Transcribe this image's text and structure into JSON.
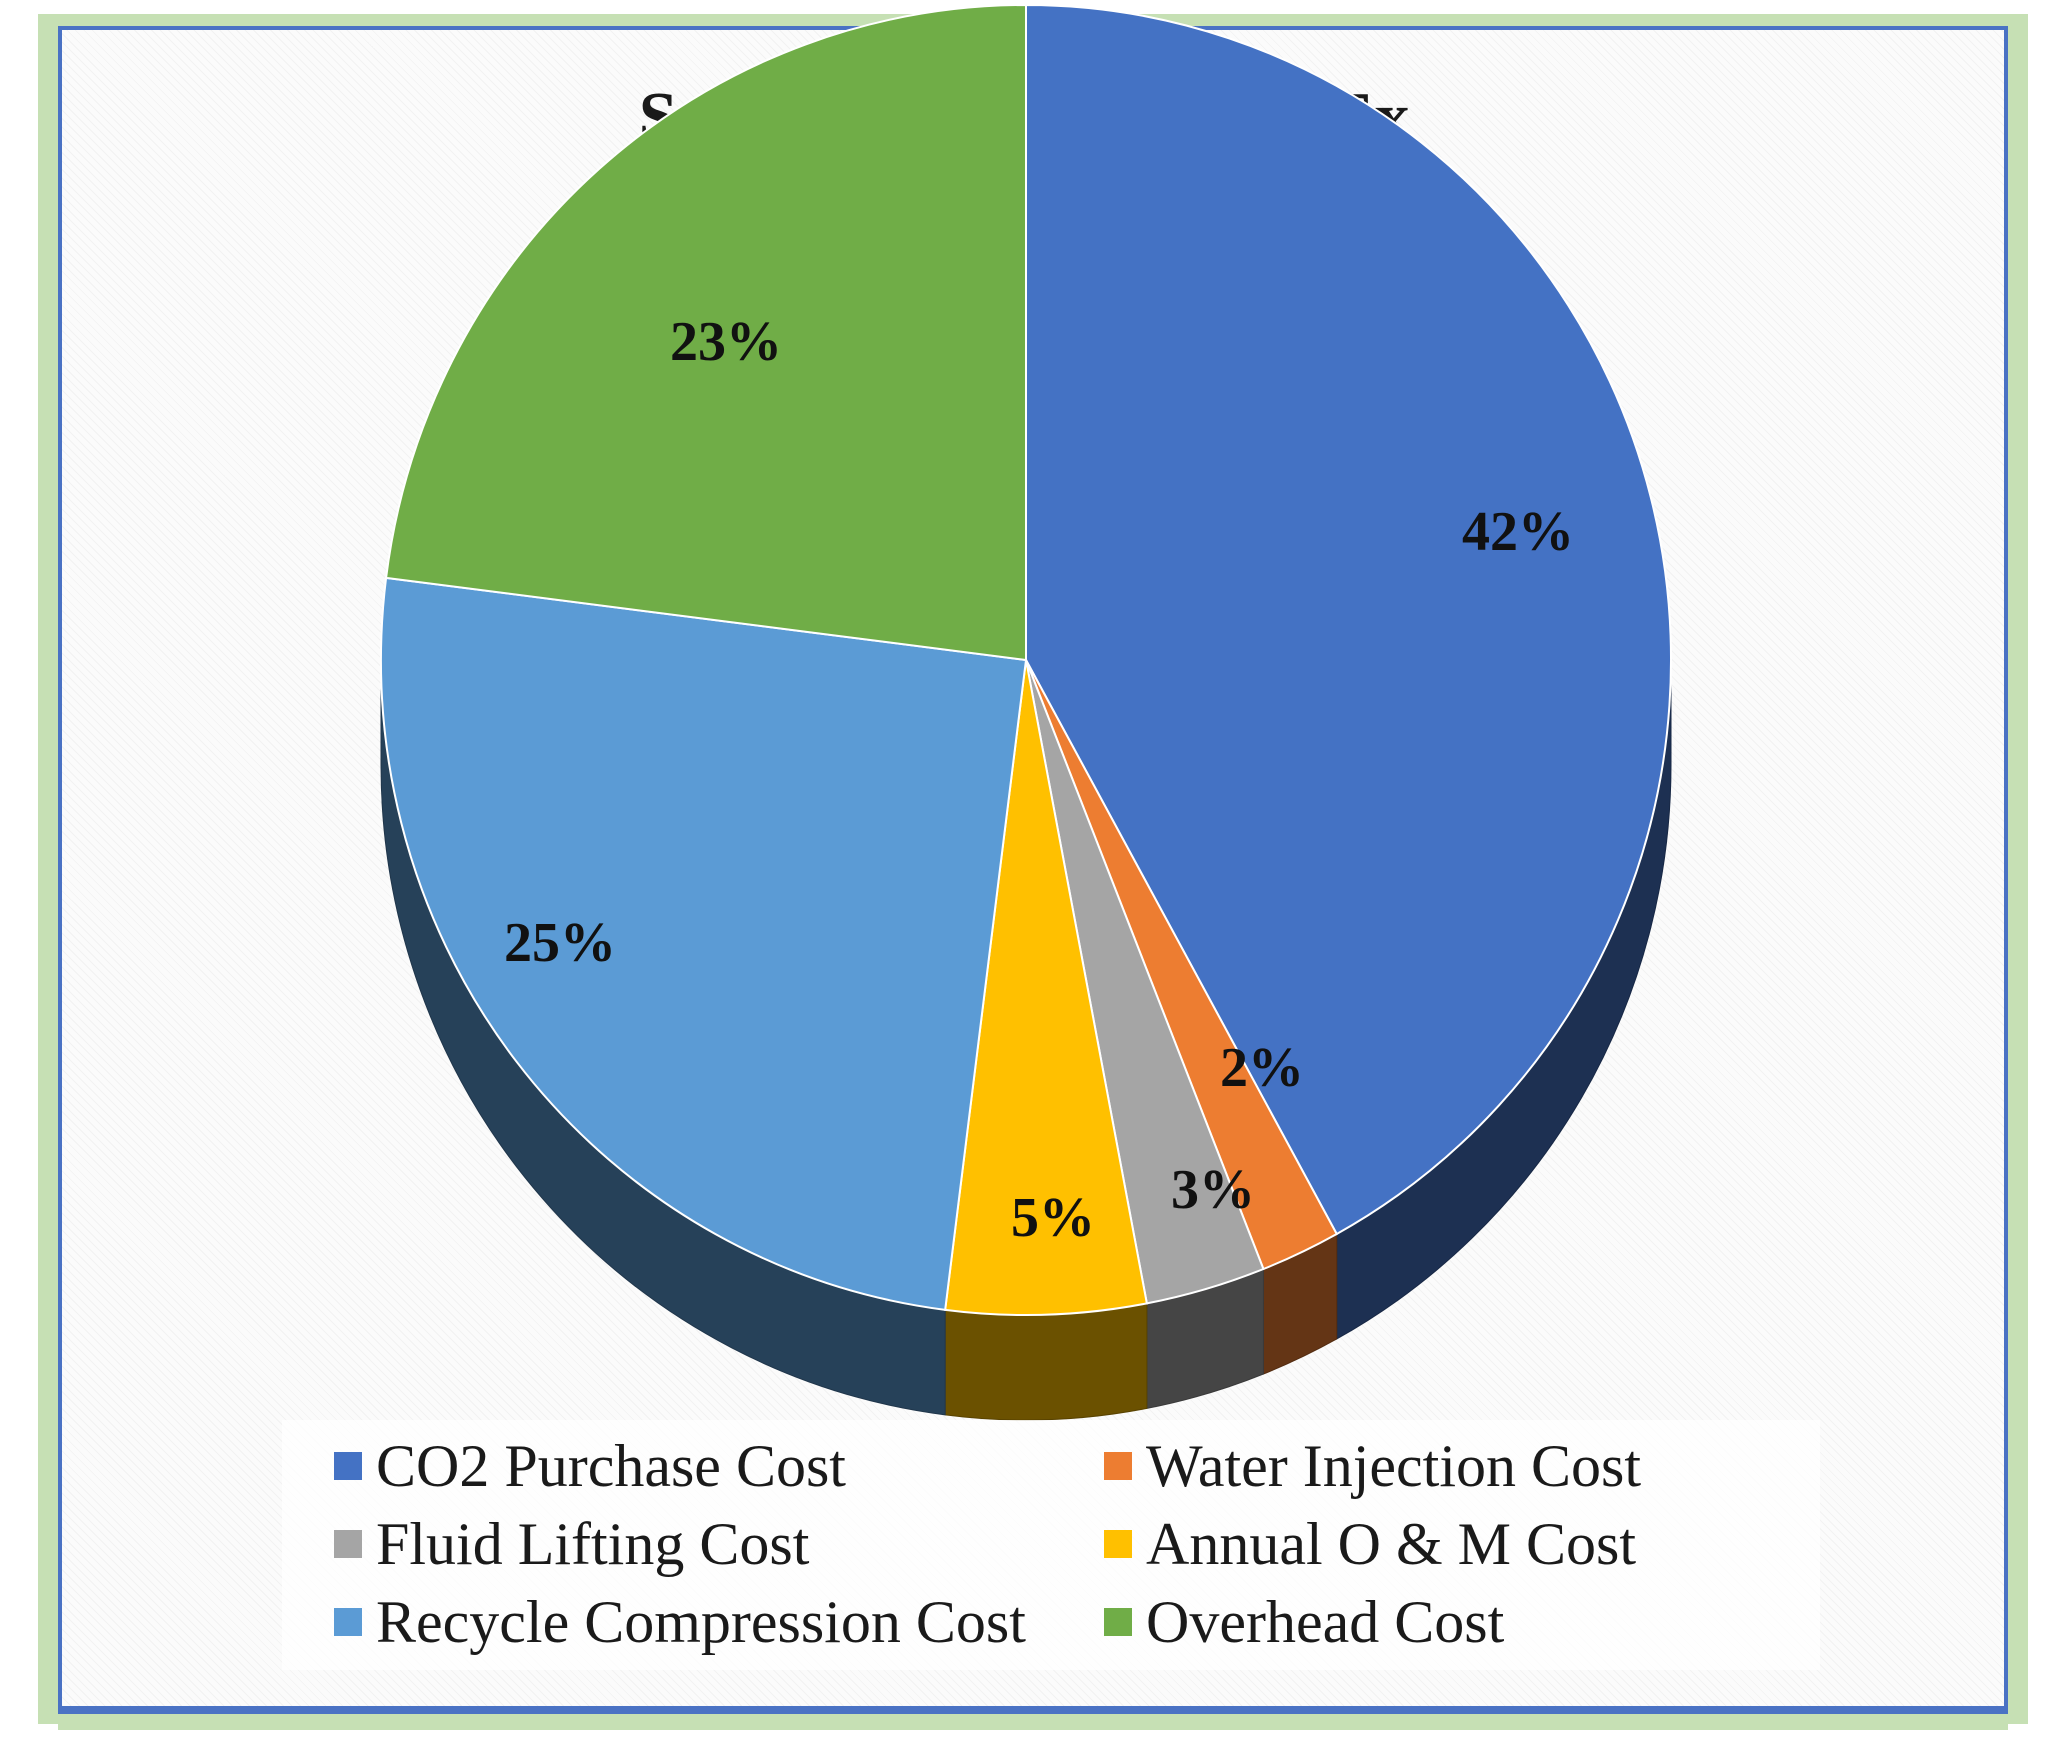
{
  "chart_data": {
    "type": "pie",
    "title": "Scenario WAG 1:1- OpEx",
    "categories": [
      "CO2 Purchase Cost",
      "Water Injection Cost",
      "Fluid Lifting Cost",
      "Annual O & M Cost",
      "Recycle Compression Cost",
      "Overhead Cost"
    ],
    "values": [
      42,
      2,
      3,
      5,
      25,
      23
    ],
    "labels": [
      "42%",
      "2%",
      "3%",
      "5%",
      "25%",
      "23%"
    ],
    "colors": [
      "#4472c4",
      "#ed7d31",
      "#a5a5a5",
      "#ffc000",
      "#5b9bd5",
      "#70ad47"
    ],
    "legend_position": "bottom",
    "style": "3d"
  }
}
